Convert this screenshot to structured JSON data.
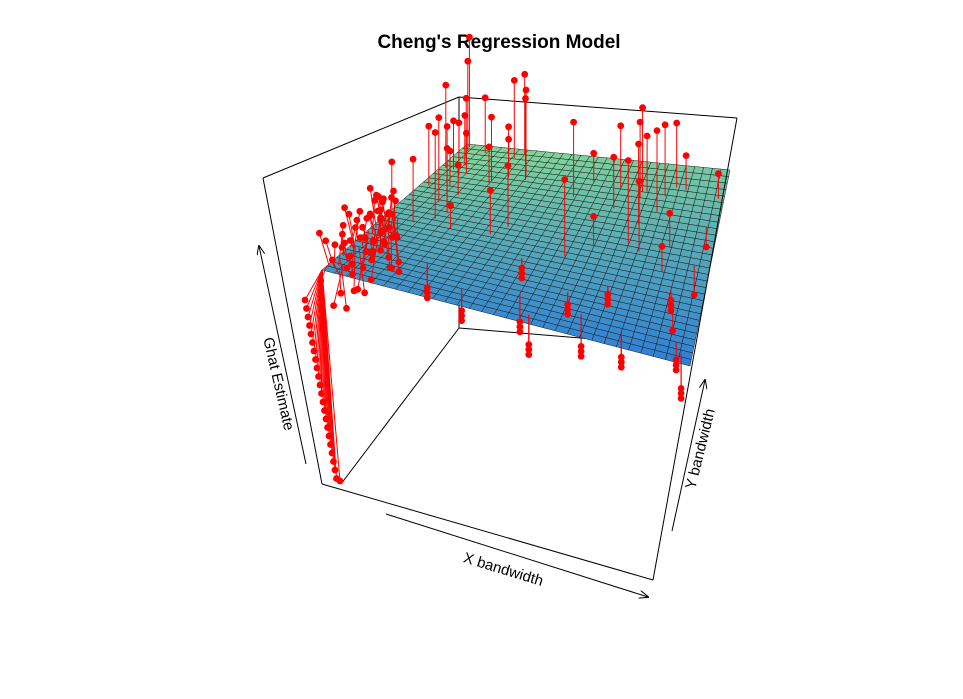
{
  "chart_data": {
    "type": "surface3d-scatter",
    "title": "Cheng's Regression Model",
    "xlabel": "X bandwidth",
    "ylabel": "Y bandwidth",
    "zlabel": "Ghat Estimate",
    "surface_color_low": "#2e7fd6",
    "surface_color_high": "#7fd39a",
    "surface_grid_color": "#1a1a1a",
    "point_color": "#ff0000",
    "box_color": "#000000",
    "ticks_shown": false
  }
}
